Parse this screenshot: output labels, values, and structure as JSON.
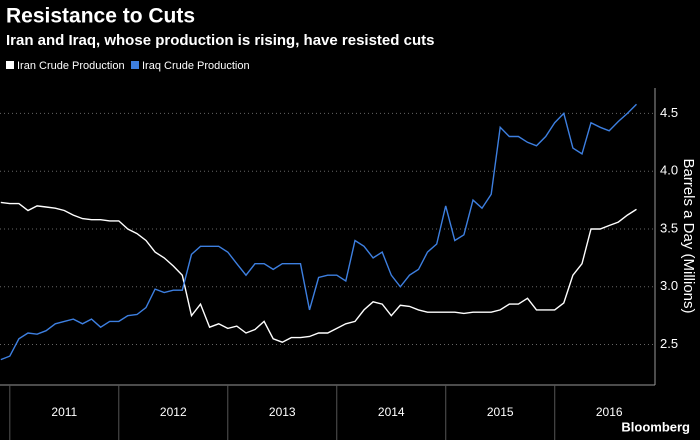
{
  "chart_data": {
    "type": "line",
    "title": "Resistance to Cuts",
    "subtitle": "Iran and Iraq, whose production is rising, have resisted cuts",
    "y_label": "Barrels a Day (Millions)",
    "source": "Bloomberg",
    "x": [
      2010.917,
      2011.0,
      2011.083,
      2011.167,
      2011.25,
      2011.333,
      2011.417,
      2011.5,
      2011.583,
      2011.667,
      2011.75,
      2011.833,
      2011.917,
      2012.0,
      2012.083,
      2012.167,
      2012.25,
      2012.333,
      2012.417,
      2012.5,
      2012.583,
      2012.667,
      2012.75,
      2012.833,
      2012.917,
      2013.0,
      2013.083,
      2013.167,
      2013.25,
      2013.333,
      2013.417,
      2013.5,
      2013.583,
      2013.667,
      2013.75,
      2013.833,
      2013.917,
      2014.0,
      2014.083,
      2014.167,
      2014.25,
      2014.333,
      2014.417,
      2014.5,
      2014.583,
      2014.667,
      2014.75,
      2014.833,
      2014.917,
      2015.0,
      2015.083,
      2015.167,
      2015.25,
      2015.333,
      2015.417,
      2015.5,
      2015.583,
      2015.667,
      2015.75,
      2015.833,
      2015.917,
      2016.0,
      2016.083,
      2016.167,
      2016.25,
      2016.333,
      2016.417,
      2016.5,
      2016.583,
      2016.667,
      2016.75
    ],
    "series": [
      {
        "name": "Iran Crude Production",
        "color": "#ffffff",
        "values": [
          3.73,
          3.72,
          3.72,
          3.66,
          3.7,
          3.69,
          3.68,
          3.66,
          3.62,
          3.59,
          3.58,
          3.58,
          3.57,
          3.57,
          3.5,
          3.46,
          3.4,
          3.3,
          3.25,
          3.18,
          3.1,
          2.75,
          2.85,
          2.65,
          2.68,
          2.64,
          2.66,
          2.6,
          2.63,
          2.7,
          2.55,
          2.52,
          2.56,
          2.56,
          2.57,
          2.6,
          2.6,
          2.64,
          2.68,
          2.7,
          2.8,
          2.87,
          2.85,
          2.75,
          2.84,
          2.83,
          2.8,
          2.78,
          2.78,
          2.78,
          2.78,
          2.77,
          2.78,
          2.78,
          2.78,
          2.8,
          2.85,
          2.85,
          2.9,
          2.8,
          2.8,
          2.8,
          2.86,
          3.1,
          3.2,
          3.5,
          3.5,
          3.53,
          3.56,
          3.62,
          3.67
        ]
      },
      {
        "name": "Iraq Crude Production",
        "color": "#3d7fe0",
        "values": [
          2.37,
          2.4,
          2.55,
          2.6,
          2.59,
          2.62,
          2.68,
          2.7,
          2.72,
          2.68,
          2.72,
          2.65,
          2.7,
          2.7,
          2.75,
          2.76,
          2.82,
          2.98,
          2.95,
          2.97,
          2.97,
          3.28,
          3.35,
          3.35,
          3.35,
          3.3,
          3.2,
          3.1,
          3.2,
          3.2,
          3.15,
          3.2,
          3.2,
          3.2,
          2.8,
          3.08,
          3.1,
          3.1,
          3.05,
          3.4,
          3.35,
          3.25,
          3.3,
          3.1,
          3.0,
          3.1,
          3.15,
          3.3,
          3.37,
          3.7,
          3.4,
          3.45,
          3.75,
          3.68,
          3.8,
          4.38,
          4.3,
          4.3,
          4.25,
          4.22,
          4.3,
          4.42,
          4.5,
          4.2,
          4.15,
          4.42,
          4.38,
          4.35,
          4.43,
          4.5,
          4.58
        ]
      }
    ],
    "xlim": [
      2010.91,
      2016.92
    ],
    "xticks": [
      {
        "value": 2011.5,
        "label": "2011"
      },
      {
        "value": 2012.5,
        "label": "2012"
      },
      {
        "value": 2013.5,
        "label": "2013"
      },
      {
        "value": 2014.5,
        "label": "2014"
      },
      {
        "value": 2015.5,
        "label": "2015"
      },
      {
        "value": 2016.5,
        "label": "2016"
      }
    ],
    "ylim": [
      2.15,
      4.72
    ],
    "yticks": [
      2.5,
      {
        "value": 3,
        "label": "3.0"
      },
      3.5,
      {
        "value": 4,
        "label": "4.0"
      },
      4.5
    ],
    "grid": true
  }
}
